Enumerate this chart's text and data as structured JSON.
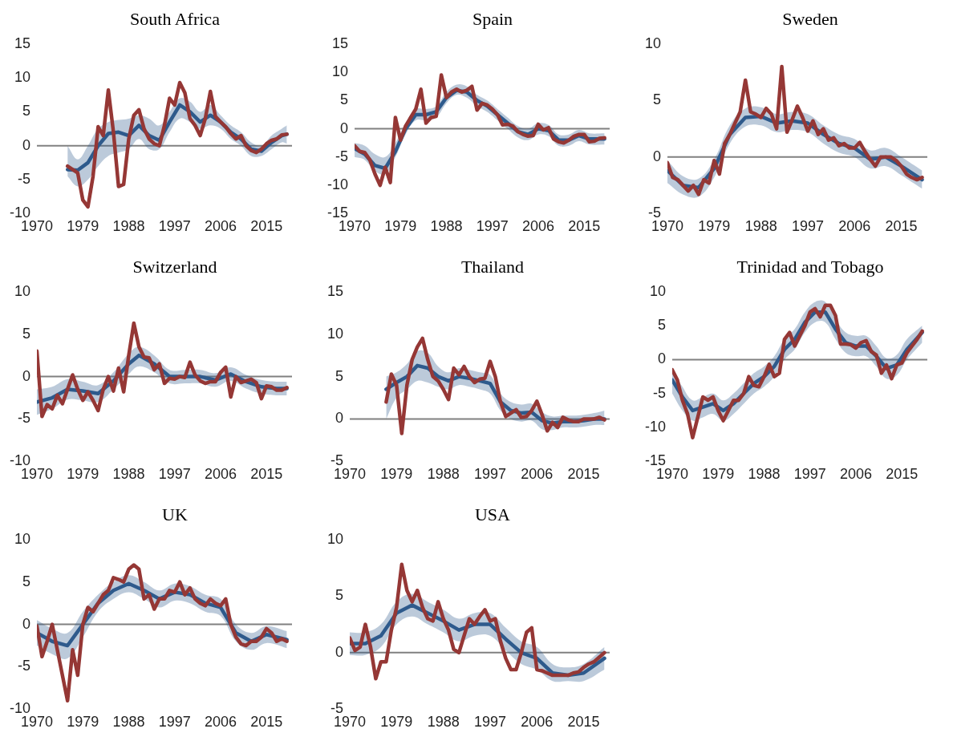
{
  "chart_data": [
    {
      "type": "line",
      "title": "South Africa",
      "xlim": [
        1970,
        2020
      ],
      "xticks": [
        1970,
        1979,
        1988,
        1997,
        2006,
        2015
      ],
      "ylim": [
        -10,
        15
      ],
      "yticks": [
        -10,
        -5,
        0,
        5,
        10,
        15
      ],
      "grid": false,
      "legend": false,
      "ref_lines": [
        {
          "axis": "y",
          "value": 0,
          "color": "#808080"
        }
      ],
      "series": [
        {
          "color": "#2e5a8c",
          "x": [
            1976,
            1978,
            1980,
            1982,
            1984,
            1986,
            1988,
            1990,
            1992,
            1994,
            1996,
            1998,
            2000,
            2002,
            2004,
            2006,
            2008,
            2010,
            2012,
            2014,
            2016,
            2018,
            2019
          ],
          "values": [
            -3.5,
            -3.6,
            -2.5,
            0,
            1.8,
            2,
            1.5,
            3,
            1.5,
            0.8,
            3.5,
            6,
            5,
            3.5,
            4.5,
            3.5,
            2,
            1,
            -0.5,
            -0.8,
            0.5,
            1.5,
            1.7
          ],
          "lower": [
            -4.5,
            -6,
            -5,
            -3,
            -1.5,
            -1,
            -0.5,
            1,
            -0.5,
            -0.5,
            2,
            4,
            3.5,
            2.5,
            3,
            2.5,
            1,
            0,
            -1.5,
            -1.5,
            -0.5,
            0.5,
            0.3
          ],
          "upper": [
            0,
            -2,
            0,
            2.5,
            3.5,
            3.8,
            4,
            4.5,
            4,
            3,
            5,
            7,
            6.5,
            5,
            6,
            4.5,
            3,
            2,
            0.5,
            0,
            1.5,
            2.5,
            3
          ]
        },
        {
          "color": "#953735",
          "x": [
            1976,
            1977,
            1978,
            1979,
            1980,
            1981,
            1982,
            1983,
            1984,
            1985,
            1986,
            1987,
            1988,
            1989,
            1990,
            1991,
            1992,
            1993,
            1994,
            1995,
            1996,
            1997,
            1998,
            1999,
            2000,
            2001,
            2002,
            2003,
            2004,
            2005,
            2006,
            2007,
            2008,
            2009,
            2010,
            2011,
            2012,
            2013,
            2014,
            2015,
            2016,
            2017,
            2018,
            2019
          ],
          "values": [
            -3,
            -3.5,
            -4,
            -8,
            -9,
            -4.5,
            2.8,
            1.5,
            8.2,
            2,
            -6,
            -5.7,
            1,
            4.5,
            5.3,
            2.5,
            1,
            0.3,
            0,
            3,
            7,
            6,
            9.3,
            7.8,
            4,
            3,
            1.5,
            4,
            8,
            4.3,
            3.5,
            2.8,
            1.8,
            1,
            1.5,
            0,
            -0.7,
            -1,
            -0.5,
            0.3,
            0.8,
            1,
            1.6,
            1.7
          ]
        }
      ]
    },
    {
      "type": "line",
      "title": "Spain",
      "xlim": [
        1970,
        2020
      ],
      "xticks": [
        1970,
        1979,
        1988,
        1997,
        2006,
        2015
      ],
      "ylim": [
        -15,
        15
      ],
      "yticks": [
        -15,
        -10,
        -5,
        0,
        5,
        10,
        15
      ],
      "grid": false,
      "legend": false,
      "ref_lines": [
        {
          "axis": "y",
          "value": 0,
          "color": "#808080"
        }
      ],
      "series": [
        {
          "color": "#2e5a8c",
          "x": [
            1970,
            1972,
            1974,
            1976,
            1978,
            1980,
            1982,
            1984,
            1986,
            1988,
            1990,
            1992,
            1994,
            1996,
            1998,
            2000,
            2002,
            2004,
            2006,
            2008,
            2010,
            2012,
            2014,
            2016,
            2019
          ],
          "values": [
            -3.5,
            -4.5,
            -6.5,
            -7,
            -4,
            0,
            2.5,
            2.5,
            3,
            5.5,
            6.8,
            6.5,
            5,
            4,
            2.5,
            1,
            -0.5,
            -1,
            0,
            -0.3,
            -2,
            -2,
            -1.2,
            -1.8,
            -1.8
          ],
          "lower": [
            -5,
            -5.5,
            -7.5,
            -8,
            -5,
            -1,
            1.5,
            1.5,
            2,
            4.5,
            6,
            5.5,
            4,
            3,
            1.5,
            0,
            -1.5,
            -2,
            -1,
            -1.3,
            -3,
            -3,
            -2.2,
            -2.8,
            -2.8
          ],
          "upper": [
            -2.5,
            -3,
            -4.5,
            -5,
            -2.5,
            1,
            3.5,
            3.5,
            4,
            6.5,
            7.8,
            7.5,
            6,
            5,
            3.5,
            2,
            0.5,
            0,
            1,
            0.7,
            -1,
            -1,
            -0.2,
            -0.8,
            -0.8
          ]
        },
        {
          "color": "#953735",
          "x": [
            1970,
            1971,
            1972,
            1973,
            1974,
            1975,
            1976,
            1977,
            1978,
            1979,
            1980,
            1981,
            1982,
            1983,
            1984,
            1985,
            1986,
            1987,
            1988,
            1989,
            1990,
            1991,
            1992,
            1993,
            1994,
            1995,
            1996,
            1997,
            1998,
            1999,
            2000,
            2001,
            2002,
            2003,
            2004,
            2005,
            2006,
            2007,
            2008,
            2009,
            2010,
            2011,
            2012,
            2013,
            2014,
            2015,
            2016,
            2017,
            2018,
            2019
          ],
          "values": [
            -3,
            -4,
            -4.2,
            -5.5,
            -8,
            -10,
            -6.8,
            -9.5,
            2,
            -2,
            0.5,
            2,
            3.5,
            7,
            1,
            2,
            2.2,
            9.5,
            5.5,
            6.5,
            7,
            6.5,
            6.8,
            7.5,
            3.3,
            4.5,
            4.2,
            3.5,
            2.5,
            0.7,
            0.8,
            0.5,
            -0.5,
            -1,
            -1.3,
            -1.2,
            0.8,
            -0.2,
            0.2,
            -1.8,
            -2.3,
            -2.5,
            -2,
            -1.3,
            -1,
            -1,
            -2.3,
            -2.2,
            -1.7,
            -1.6
          ]
        }
      ]
    },
    {
      "type": "line",
      "title": "Sweden",
      "xlim": [
        1970,
        2020
      ],
      "xticks": [
        1970,
        1979,
        1988,
        1997,
        2006,
        2015
      ],
      "ylim": [
        -5,
        10
      ],
      "yticks": [
        -5,
        0,
        5,
        10
      ],
      "grid": false,
      "legend": false,
      "ref_lines": [
        {
          "axis": "y",
          "value": 0,
          "color": "#808080"
        }
      ],
      "series": [
        {
          "color": "#2e5a8c",
          "x": [
            1970,
            1973,
            1976,
            1979,
            1982,
            1985,
            1988,
            1991,
            1994,
            1997,
            2000,
            2003,
            2006,
            2009,
            2012,
            2015,
            2019
          ],
          "values": [
            -1.2,
            -2.5,
            -2.7,
            -1,
            2,
            3.5,
            3.6,
            3,
            3.2,
            3,
            2,
            1.2,
            0.8,
            -0.2,
            0,
            -0.8,
            -2
          ],
          "lower": [
            -2.3,
            -3.3,
            -3.5,
            -1.8,
            1.2,
            2.7,
            2.8,
            2.2,
            2.4,
            2.2,
            1.2,
            0.4,
            0,
            -1,
            -0.8,
            -1.6,
            -2.8
          ],
          "upper": [
            -0.3,
            -1.7,
            -1.9,
            -0.2,
            2.8,
            4.3,
            4.4,
            3.8,
            4,
            3.8,
            2.8,
            2,
            1.6,
            0.6,
            0.8,
            0,
            -1.2
          ]
        },
        {
          "color": "#953735",
          "x": [
            1970,
            1971,
            1972,
            1973,
            1974,
            1975,
            1976,
            1977,
            1978,
            1979,
            1980,
            1981,
            1982,
            1983,
            1984,
            1985,
            1986,
            1987,
            1988,
            1989,
            1990,
            1991,
            1992,
            1993,
            1994,
            1995,
            1996,
            1997,
            1998,
            1999,
            2000,
            2001,
            2002,
            2003,
            2004,
            2005,
            2006,
            2007,
            2008,
            2009,
            2010,
            2011,
            2012,
            2013,
            2014,
            2015,
            2016,
            2017,
            2018,
            2019
          ],
          "values": [
            -0.5,
            -1.8,
            -2,
            -2.5,
            -3,
            -2.5,
            -3.3,
            -2,
            -2.3,
            -0.3,
            -1.5,
            1.2,
            2,
            3,
            4,
            6.8,
            4,
            3.8,
            3.5,
            4.3,
            3.8,
            2.5,
            8,
            2.2,
            3.3,
            4.5,
            3.5,
            2.3,
            3.2,
            2,
            2.5,
            1.5,
            1.7,
            1,
            1.2,
            0.8,
            0.8,
            1.3,
            0.5,
            -0.2,
            -0.8,
            0,
            0,
            0,
            -0.3,
            -0.8,
            -1.5,
            -1.8,
            -2,
            -1.8
          ]
        }
      ]
    },
    {
      "type": "line",
      "title": "Switzerland",
      "xlim": [
        1970,
        2020
      ],
      "xticks": [
        1970,
        1979,
        1988,
        1997,
        2006,
        2015
      ],
      "ylim": [
        -10,
        10
      ],
      "yticks": [
        -10,
        -5,
        0,
        5,
        10
      ],
      "grid": false,
      "legend": false,
      "ref_lines": [
        {
          "axis": "y",
          "value": 0,
          "color": "#808080"
        }
      ],
      "series": [
        {
          "color": "#2e5a8c",
          "x": [
            1970,
            1973,
            1976,
            1979,
            1982,
            1985,
            1988,
            1990,
            1993,
            1996,
            1999,
            2002,
            2005,
            2008,
            2011,
            2014,
            2017,
            2019
          ],
          "values": [
            -3,
            -2.5,
            -1.5,
            -1.7,
            -2,
            -0.5,
            1.5,
            2.5,
            1.5,
            0,
            0,
            0,
            -0.4,
            0.3,
            -0.6,
            -1.2,
            -1.4,
            -1.4
          ],
          "lower": [
            -4.5,
            -3.8,
            -2.7,
            -2.8,
            -3,
            -1.5,
            0.3,
            1.2,
            0.5,
            -0.8,
            -0.8,
            -0.8,
            -1.2,
            -0.5,
            -1.4,
            -2,
            -2.2,
            -2.2
          ],
          "upper": [
            -1.5,
            -1.2,
            -0.3,
            -0.6,
            -1,
            0.5,
            2.7,
            3.5,
            2.5,
            0.8,
            0.8,
            0.8,
            0.4,
            1.1,
            0.2,
            -0.4,
            -0.6,
            -0.6
          ]
        },
        {
          "color": "#953735",
          "x": [
            1970,
            1971,
            1972,
            1973,
            1974,
            1975,
            1976,
            1977,
            1978,
            1979,
            1980,
            1981,
            1982,
            1983,
            1984,
            1985,
            1986,
            1987,
            1988,
            1989,
            1990,
            1991,
            1992,
            1993,
            1994,
            1995,
            1996,
            1997,
            1998,
            1999,
            2000,
            2001,
            2002,
            2003,
            2004,
            2005,
            2006,
            2007,
            2008,
            2009,
            2010,
            2011,
            2012,
            2013,
            2014,
            2015,
            2016,
            2017,
            2018,
            2019
          ],
          "values": [
            3,
            -4.7,
            -3.3,
            -3.8,
            -2.2,
            -3.2,
            -1.5,
            0.2,
            -1.5,
            -2.8,
            -1.8,
            -2.8,
            -4,
            -1.5,
            0,
            -1.7,
            1,
            -1.8,
            2.5,
            6.3,
            3.5,
            2.3,
            2.2,
            0.8,
            1.5,
            -0.8,
            -0.2,
            -0.3,
            0,
            -0.1,
            1.7,
            0.2,
            -0.5,
            -0.8,
            -0.6,
            -0.6,
            0.5,
            1.1,
            -2.4,
            0,
            -0.7,
            -0.5,
            -0.3,
            -0.7,
            -2.6,
            -1.1,
            -1.2,
            -1.6,
            -1.6,
            -1.3
          ]
        }
      ]
    },
    {
      "type": "line",
      "title": "Thailand",
      "xlim": [
        1970,
        2020
      ],
      "xticks": [
        1970,
        1979,
        1988,
        1997,
        2006,
        2015
      ],
      "ylim": [
        -5,
        15
      ],
      "yticks": [
        -5,
        0,
        5,
        10,
        15
      ],
      "grid": false,
      "legend": false,
      "ref_lines": [
        {
          "axis": "y",
          "value": 0,
          "color": "#808080"
        }
      ],
      "series": [
        {
          "color": "#2e5a8c",
          "x": [
            1977,
            1979,
            1981,
            1983,
            1985,
            1987,
            1989,
            1991,
            1993,
            1995,
            1997,
            1999,
            2001,
            2003,
            2005,
            2007,
            2009,
            2011,
            2013,
            2015,
            2017,
            2019
          ],
          "values": [
            3.5,
            4.3,
            5,
            6.3,
            6,
            5,
            4.5,
            5,
            4.8,
            4.5,
            4.2,
            2,
            1,
            0.7,
            0.8,
            -0.2,
            -0.5,
            -0.3,
            -0.3,
            -0.2,
            0,
            0
          ],
          "lower": [
            0,
            2.5,
            3.5,
            4.5,
            4.3,
            3.8,
            3.5,
            4,
            3.8,
            3.5,
            3,
            1,
            0,
            -0.3,
            -0.2,
            -1.2,
            -1.3,
            -1,
            -1,
            -0.9,
            -0.7,
            -0.7
          ],
          "upper": [
            5,
            5.5,
            6.5,
            8,
            7.8,
            6.2,
            5.5,
            6,
            5.8,
            5.5,
            5.2,
            3,
            2,
            1.7,
            1.8,
            0.8,
            0.3,
            0.4,
            0.4,
            0.5,
            0.7,
            1
          ]
        },
        {
          "color": "#953735",
          "x": [
            1977,
            1978,
            1979,
            1980,
            1981,
            1982,
            1983,
            1984,
            1985,
            1986,
            1987,
            1988,
            1989,
            1990,
            1991,
            1992,
            1993,
            1994,
            1995,
            1996,
            1997,
            1998,
            1999,
            2000,
            2001,
            2002,
            2003,
            2004,
            2005,
            2006,
            2007,
            2008,
            2009,
            2010,
            2011,
            2012,
            2013,
            2014,
            2015,
            2016,
            2017,
            2018,
            2019
          ],
          "values": [
            2,
            5.3,
            4,
            -1.7,
            4,
            7,
            8.5,
            9.5,
            7,
            5,
            4.5,
            3.5,
            2.3,
            6,
            5.2,
            6.2,
            5,
            4.3,
            4.7,
            4.8,
            6.8,
            5,
            2,
            0.3,
            0.7,
            1.1,
            0.2,
            0.3,
            1,
            2.1,
            0.5,
            -1.4,
            -0.4,
            -1,
            0.2,
            -0.1,
            -0.3,
            -0.3,
            0,
            0,
            0,
            0.2,
            -0.1
          ]
        }
      ]
    },
    {
      "type": "line",
      "title": "Trinidad and Tobago",
      "xlim": [
        1970,
        2020
      ],
      "xticks": [
        1970,
        1979,
        1988,
        1997,
        2006,
        2015
      ],
      "ylim": [
        -15,
        10
      ],
      "yticks": [
        -15,
        -10,
        -5,
        0,
        5,
        10
      ],
      "grid": false,
      "legend": false,
      "ref_lines": [
        {
          "axis": "y",
          "value": 0,
          "color": "#808080"
        }
      ],
      "series": [
        {
          "color": "#2e5a8c",
          "x": [
            1970,
            1972,
            1974,
            1976,
            1978,
            1980,
            1982,
            1984,
            1986,
            1988,
            1990,
            1992,
            1994,
            1996,
            1998,
            2000,
            2002,
            2004,
            2006,
            2008,
            2010,
            2012,
            2014,
            2016,
            2019
          ],
          "values": [
            -3,
            -5.5,
            -7.5,
            -7,
            -6.5,
            -7.5,
            -6.5,
            -5,
            -3.5,
            -2.5,
            -1,
            1.5,
            3,
            5.5,
            7,
            7,
            4.5,
            2.5,
            2,
            2,
            0.5,
            -1.3,
            -0.8,
            1.5,
            4
          ],
          "lower": [
            -5,
            -7.5,
            -9,
            -8.5,
            -8,
            -9,
            -8,
            -6.5,
            -5,
            -4,
            -2.5,
            0,
            1.5,
            4,
            5.5,
            5.5,
            3,
            1,
            0.5,
            0.5,
            -1,
            -2.8,
            -2.3,
            0,
            2.5
          ],
          "upper": [
            -1.5,
            -4,
            -6,
            -5.5,
            -5,
            -6,
            -5,
            -3.5,
            -2,
            -1,
            0.5,
            3,
            4.5,
            7,
            8.5,
            8.5,
            6,
            4,
            3.5,
            3.5,
            2,
            0.2,
            0.7,
            3,
            5
          ]
        },
        {
          "color": "#953735",
          "x": [
            1970,
            1971,
            1972,
            1973,
            1974,
            1975,
            1976,
            1977,
            1978,
            1979,
            1980,
            1981,
            1982,
            1983,
            1984,
            1985,
            1986,
            1987,
            1988,
            1989,
            1990,
            1991,
            1992,
            1993,
            1994,
            1995,
            1996,
            1997,
            1998,
            1999,
            2000,
            2001,
            2002,
            2003,
            2004,
            2005,
            2006,
            2007,
            2008,
            2009,
            2010,
            2011,
            2012,
            2013,
            2014,
            2015,
            2016,
            2017,
            2018,
            2019
          ],
          "values": [
            -1.5,
            -3,
            -6,
            -8,
            -11.5,
            -8.5,
            -5.5,
            -6,
            -5.5,
            -7.5,
            -9,
            -7.5,
            -6,
            -6,
            -5,
            -2.5,
            -3.8,
            -4,
            -2.5,
            -0.7,
            -2.5,
            -2,
            3,
            4,
            2,
            3.5,
            5,
            7,
            7.5,
            6.3,
            8,
            8,
            6.5,
            2.3,
            2.3,
            2.2,
            1.7,
            2.5,
            2.8,
            1.2,
            0.7,
            -2,
            -0.8,
            -2.8,
            -0.8,
            -0.5,
            1,
            2,
            3,
            4.2
          ]
        }
      ]
    },
    {
      "type": "line",
      "title": "UK",
      "xlim": [
        1970,
        2020
      ],
      "xticks": [
        1970,
        1979,
        1988,
        1997,
        2006,
        2015
      ],
      "ylim": [
        -10,
        10
      ],
      "yticks": [
        -10,
        -5,
        0,
        5,
        10
      ],
      "grid": false,
      "legend": false,
      "ref_lines": [
        {
          "axis": "y",
          "value": 0,
          "color": "#808080"
        }
      ],
      "series": [
        {
          "color": "#2e5a8c",
          "x": [
            1970,
            1973,
            1976,
            1979,
            1982,
            1985,
            1988,
            1991,
            1994,
            1997,
            2000,
            2003,
            2006,
            2009,
            2012,
            2015,
            2019
          ],
          "values": [
            -1,
            -2,
            -2.5,
            0,
            2.5,
            4,
            4.8,
            4,
            3,
            3.8,
            3.5,
            2.5,
            2,
            -1,
            -2,
            -1.2,
            -1.8
          ],
          "lower": [
            -2.5,
            -3.5,
            -4,
            -1.5,
            1.5,
            3,
            3.8,
            3,
            2,
            2.8,
            2.5,
            1.5,
            1,
            -2,
            -3,
            -2.2,
            -2.8
          ],
          "upper": [
            0.5,
            -0.5,
            -1,
            1.5,
            3.5,
            5,
            5.8,
            5,
            4,
            4.8,
            4.5,
            3.5,
            3,
            0,
            -1,
            -0.2,
            -0.8
          ]
        },
        {
          "color": "#953735",
          "x": [
            1970,
            1971,
            1972,
            1973,
            1974,
            1975,
            1976,
            1977,
            1978,
            1979,
            1980,
            1981,
            1982,
            1983,
            1984,
            1985,
            1986,
            1987,
            1988,
            1989,
            1990,
            1991,
            1992,
            1993,
            1994,
            1995,
            1996,
            1997,
            1998,
            1999,
            2000,
            2001,
            2002,
            2003,
            2004,
            2005,
            2006,
            2007,
            2008,
            2009,
            2010,
            2011,
            2012,
            2013,
            2014,
            2015,
            2016,
            2017,
            2018,
            2019
          ],
          "values": [
            -0.2,
            -3.8,
            -2,
            0,
            -3,
            -6,
            -9,
            -3,
            -6,
            0,
            2,
            1.5,
            2.5,
            3.5,
            4,
            5.5,
            5.3,
            5,
            6.5,
            7,
            6.5,
            3,
            3.5,
            1.8,
            3,
            3,
            4,
            3.8,
            5,
            3.5,
            4.3,
            3,
            2.5,
            2.2,
            3,
            2.5,
            2.2,
            3,
            0,
            -1.5,
            -2.3,
            -2.5,
            -2,
            -2,
            -1.5,
            -0.5,
            -1,
            -2,
            -1.7,
            -2
          ]
        }
      ]
    },
    {
      "type": "line",
      "title": "USA",
      "xlim": [
        1970,
        2020
      ],
      "xticks": [
        1970,
        1979,
        1988,
        1997,
        2006,
        2015
      ],
      "ylim": [
        -5,
        10
      ],
      "yticks": [
        -5,
        0,
        5,
        10
      ],
      "grid": false,
      "legend": false,
      "ref_lines": [
        {
          "axis": "y",
          "value": 0,
          "color": "#808080"
        }
      ],
      "series": [
        {
          "color": "#2e5a8c",
          "x": [
            1970,
            1973,
            1976,
            1979,
            1982,
            1985,
            1988,
            1991,
            1994,
            1997,
            2000,
            2003,
            2006,
            2009,
            2012,
            2015,
            2019
          ],
          "values": [
            0.8,
            0.8,
            1.5,
            3.5,
            4.2,
            3.5,
            2.8,
            2,
            2.5,
            2.5,
            1.2,
            0,
            -0.5,
            -1.8,
            -2,
            -1.8,
            -0.5
          ],
          "lower": [
            -0.2,
            -0.2,
            0.5,
            2.5,
            3.2,
            2.5,
            1.8,
            1,
            1.5,
            1.5,
            0.2,
            -1,
            -1.5,
            -2.5,
            -2.5,
            -2.5,
            -1.5
          ],
          "upper": [
            1.8,
            1.8,
            2.5,
            4.5,
            5.2,
            4.5,
            3.8,
            3,
            3.5,
            3.5,
            2.2,
            1,
            0.5,
            -1,
            -1.3,
            -1,
            0.5
          ]
        },
        {
          "color": "#953735",
          "x": [
            1970,
            1971,
            1972,
            1973,
            1974,
            1975,
            1976,
            1977,
            1978,
            1979,
            1980,
            1981,
            1982,
            1983,
            1984,
            1985,
            1986,
            1987,
            1988,
            1989,
            1990,
            1991,
            1992,
            1993,
            1994,
            1995,
            1996,
            1997,
            1998,
            1999,
            2000,
            2001,
            2002,
            2003,
            2004,
            2005,
            2006,
            2007,
            2008,
            2009,
            2010,
            2011,
            2012,
            2013,
            2014,
            2015,
            2016,
            2017,
            2018,
            2019
          ],
          "values": [
            1.3,
            0.2,
            0.5,
            2.5,
            0.5,
            -2.3,
            -0.8,
            -0.8,
            2,
            4,
            7.8,
            5.5,
            4.5,
            5.5,
            4,
            3,
            2.8,
            4.5,
            3,
            2,
            0.3,
            0,
            1.5,
            3,
            2.5,
            3.2,
            3.8,
            2.8,
            3,
            1,
            -0.5,
            -1.5,
            -1.5,
            0,
            1.8,
            2.2,
            -1.5,
            -1.6,
            -1.8,
            -2,
            -2,
            -2,
            -2,
            -1.8,
            -1.7,
            -1.3,
            -1,
            -0.8,
            -0.4,
            0
          ]
        }
      ]
    }
  ]
}
